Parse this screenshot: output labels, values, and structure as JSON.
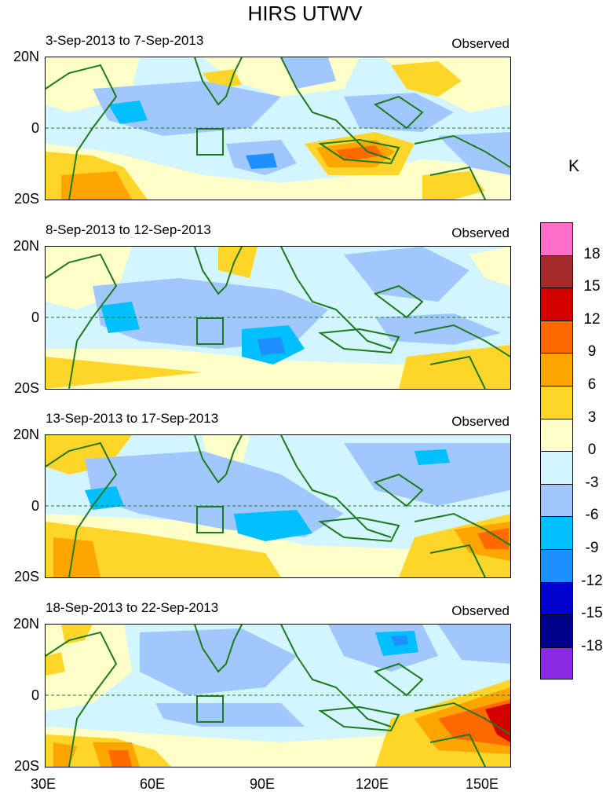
{
  "title": "HIRS UTWV",
  "panels": [
    {
      "period": "3-Sep-2013 to 7-Sep-2013",
      "label": "Observed"
    },
    {
      "period": "8-Sep-2013 to 12-Sep-2013",
      "label": "Observed"
    },
    {
      "period": "13-Sep-2013 to 17-Sep-2013",
      "label": "Observed"
    },
    {
      "period": "18-Sep-2013 to 22-Sep-2013",
      "label": "Observed"
    }
  ],
  "lat_labels": [
    "20N",
    "0",
    "20S"
  ],
  "lon_labels": [
    "30E",
    "60E",
    "90E",
    "120E",
    "150E"
  ],
  "colorbar": {
    "unit": "K",
    "levels": [
      "18",
      "15",
      "12",
      "9",
      "6",
      "3",
      "0",
      "-3",
      "-6",
      "-9",
      "-12",
      "-15",
      "-18"
    ],
    "colors": [
      "#ff6ec8",
      "#a52a2a",
      "#d40000",
      "#ff6a00",
      "#ffa500",
      "#ffd52a",
      "#ffffc8",
      "#d2f5ff",
      "#a0c8ff",
      "#00bfff",
      "#1e8fff",
      "#0000cd",
      "#00008b",
      "#8a2be2"
    ]
  },
  "map_colors": {
    "coast": "#1f7a1f",
    "box": "#1f7a1f"
  }
}
